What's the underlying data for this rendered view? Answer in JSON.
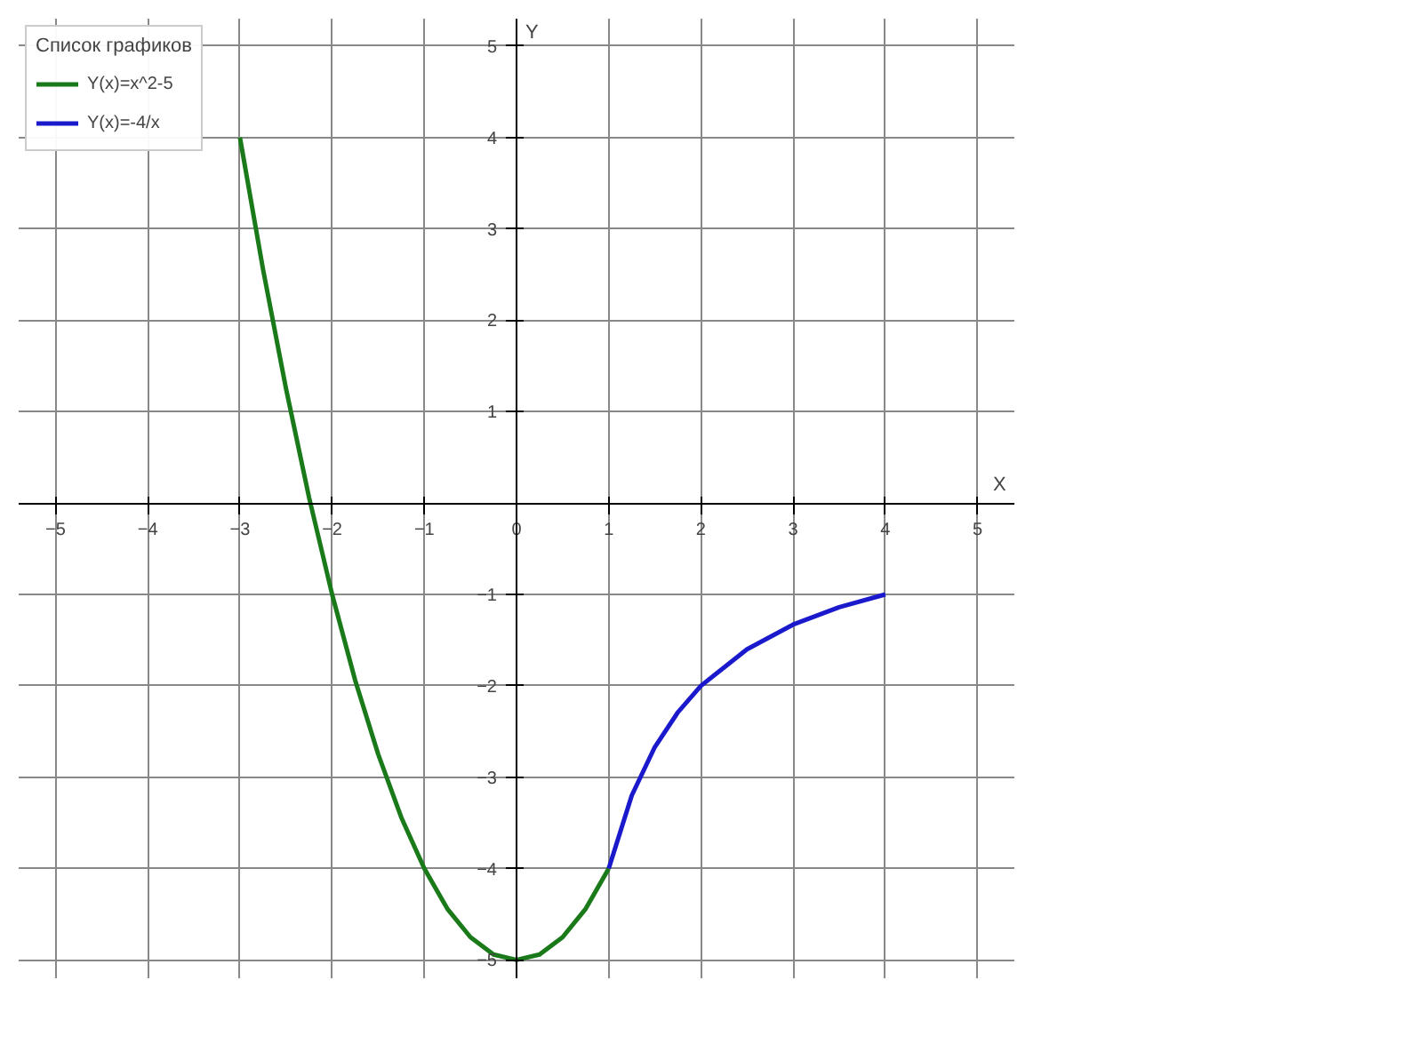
{
  "chart_data": {
    "type": "line",
    "legend_title": "Список графиков",
    "xlabel": "X",
    "ylabel": "Y",
    "xlim": [
      -5.4,
      5.4
    ],
    "ylim": [
      -5.2,
      5.3
    ],
    "xticks": [
      -5,
      -4,
      -3,
      -2,
      -1,
      0,
      1,
      2,
      3,
      4,
      5
    ],
    "yticks": [
      -5,
      -4,
      -3,
      -2,
      -1,
      {
        "value": 0,
        "label": null
      },
      1,
      2,
      3,
      4,
      5
    ],
    "grid": true,
    "legend": "top left",
    "marker": "none",
    "line_style": "solid",
    "series": [
      {
        "name": "Y(x)=x^2-5",
        "color": "#1a7a1a",
        "x": [
          -3,
          -2.75,
          -2.5,
          -2.25,
          -2,
          -1.75,
          -1.5,
          -1.25,
          -1,
          -0.75,
          -0.5,
          -0.25,
          0,
          0.25,
          0.5,
          0.75,
          1
        ],
        "values": [
          4,
          2.56,
          1.25,
          0.06,
          -1,
          -1.94,
          -2.75,
          -3.44,
          -4,
          -4.44,
          -4.75,
          -4.94,
          -5,
          -4.94,
          -4.75,
          -4.44,
          -4
        ]
      },
      {
        "name": "Y(x)=-4/x",
        "color": "#1a1acc",
        "x": [
          1,
          1.25,
          1.5,
          1.75,
          2,
          2.5,
          3,
          3.5,
          4
        ],
        "values": [
          -4,
          -3.2,
          -2.67,
          -2.29,
          -2,
          -1.6,
          -1.33,
          -1.14,
          -1
        ]
      }
    ]
  }
}
